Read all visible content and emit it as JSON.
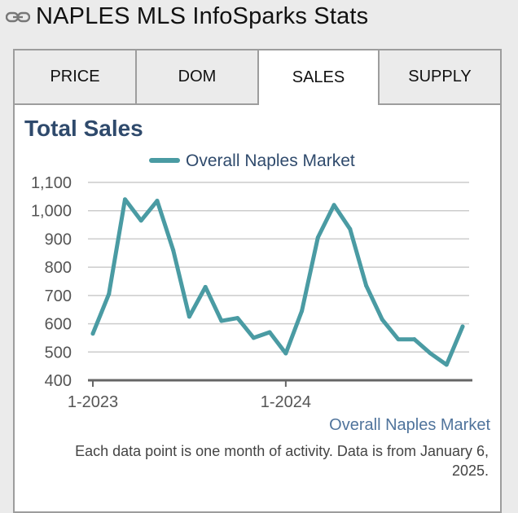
{
  "header": {
    "title": "NAPLES MLS InfoSparks Stats",
    "icon": "link-icon"
  },
  "tabs": [
    {
      "label": "PRICE",
      "active": false
    },
    {
      "label": "DOM",
      "active": false
    },
    {
      "label": "SALES",
      "active": true
    },
    {
      "label": "SUPPLY",
      "active": false
    }
  ],
  "footer": {
    "series_label": "Overall Naples Market",
    "note": "Each data point is one month of activity. Data is from January 6, 2025."
  },
  "colors": {
    "series": "#4a9ba3",
    "title": "#2f4a6c",
    "axis_text": "#555555",
    "grid": "#cccccc"
  },
  "chart_data": {
    "type": "line",
    "title": "Total Sales",
    "xlabel": "",
    "ylabel": "",
    "legend_position": "top-center",
    "grid": true,
    "ylim": [
      400,
      1100
    ],
    "y_ticks": [
      400,
      500,
      600,
      700,
      800,
      900,
      1000,
      1100
    ],
    "y_tick_labels": [
      "400",
      "500",
      "600",
      "700",
      "800",
      "900",
      "1,000",
      "1,100"
    ],
    "x_tick_labels": [
      "1-2023",
      "1-2024"
    ],
    "categories": [
      "2023-01",
      "2023-02",
      "2023-03",
      "2023-04",
      "2023-05",
      "2023-06",
      "2023-07",
      "2023-08",
      "2023-09",
      "2023-10",
      "2023-11",
      "2023-12",
      "2024-01",
      "2024-02",
      "2024-03",
      "2024-04",
      "2024-05",
      "2024-06",
      "2024-07",
      "2024-08",
      "2024-09",
      "2024-10",
      "2024-11",
      "2024-12"
    ],
    "series": [
      {
        "name": "Overall Naples Market",
        "values": [
          565,
          705,
          1040,
          965,
          1035,
          860,
          625,
          730,
          610,
          620,
          550,
          570,
          495,
          645,
          905,
          1020,
          935,
          735,
          615,
          545,
          545,
          495,
          455,
          590
        ]
      }
    ]
  }
}
